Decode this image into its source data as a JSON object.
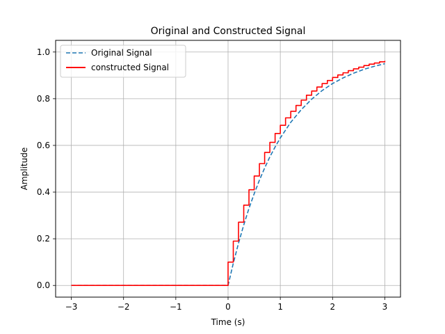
{
  "chart_data": {
    "type": "line",
    "title": "Original and Constructed Signal",
    "xlabel": "Time (s)",
    "ylabel": "Amplitude",
    "xlim": [
      -3.3,
      3.3
    ],
    "ylim": [
      -0.05,
      1.05
    ],
    "xticks": [
      -3,
      -2,
      -1,
      0,
      1,
      2,
      3
    ],
    "xtick_labels": [
      "−3",
      "−2",
      "−1",
      "0",
      "1",
      "2",
      "3"
    ],
    "yticks": [
      0.0,
      0.2,
      0.4,
      0.6,
      0.8,
      1.0
    ],
    "ytick_labels": [
      "0.0",
      "0.2",
      "0.4",
      "0.6",
      "0.8",
      "1.0"
    ],
    "grid": true,
    "legend_position": "top-left",
    "series": [
      {
        "name": "Original Signal",
        "color": "#1f77b4",
        "style": "dashed",
        "x": [
          -3.0,
          -2.5,
          -2.0,
          -1.5,
          -1.0,
          -0.5,
          0.0,
          0.1,
          0.2,
          0.3,
          0.4,
          0.5,
          0.6,
          0.7,
          0.8,
          0.9,
          1.0,
          1.2,
          1.4,
          1.6,
          1.8,
          2.0,
          2.2,
          2.4,
          2.6,
          2.8,
          3.0
        ],
        "y": [
          0,
          0,
          0,
          0,
          0,
          0,
          0,
          0.095,
          0.181,
          0.259,
          0.33,
          0.393,
          0.451,
          0.503,
          0.551,
          0.593,
          0.632,
          0.699,
          0.753,
          0.798,
          0.835,
          0.865,
          0.889,
          0.909,
          0.926,
          0.939,
          0.95
        ]
      },
      {
        "name": "constructed Signal",
        "color": "#ff0000",
        "style": "step",
        "x": [
          -3.0,
          0.0,
          0.1,
          0.2,
          0.3,
          0.4,
          0.5,
          0.6,
          0.7,
          0.8,
          0.9,
          1.0,
          1.1,
          1.2,
          1.3,
          1.4,
          1.5,
          1.6,
          1.7,
          1.8,
          1.9,
          2.0,
          2.1,
          2.2,
          2.3,
          2.4,
          2.5,
          2.6,
          2.7,
          2.8,
          2.9,
          3.0
        ],
        "y": [
          0,
          0.1,
          0.19,
          0.271,
          0.344,
          0.41,
          0.469,
          0.522,
          0.57,
          0.613,
          0.651,
          0.686,
          0.718,
          0.746,
          0.771,
          0.794,
          0.815,
          0.833,
          0.85,
          0.865,
          0.878,
          0.891,
          0.902,
          0.911,
          0.92,
          0.928,
          0.935,
          0.942,
          0.948,
          0.953,
          0.958,
          0.962
        ]
      }
    ]
  }
}
